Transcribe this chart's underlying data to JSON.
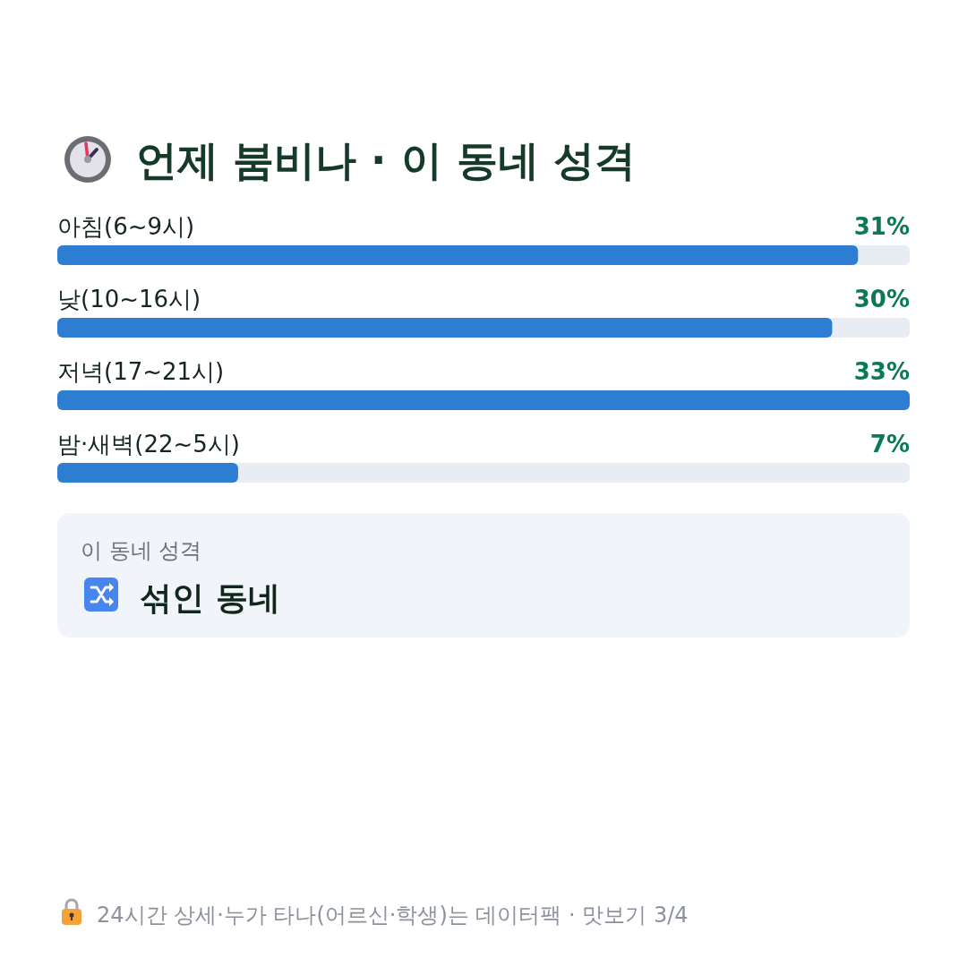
{
  "chart_data": {
    "type": "bar",
    "orientation": "horizontal",
    "title": "언제 붐비나 · 이 동네 성격",
    "categories": [
      "아침(6~9시)",
      "낮(10~16시)",
      "저녁(17~21시)",
      "밤·새벽(22~5시)"
    ],
    "values": [
      31,
      30,
      33,
      7
    ],
    "color": "#2d7dd2",
    "xlim": [
      0,
      33
    ],
    "value_labels": [
      "31%",
      "30%",
      "33%",
      "7%"
    ],
    "annotations": [
      "이 동네 성격",
      "섞인 동네",
      "24시간 상세·누가 타나(어르신·학생)는 데이터팩 · 맛보기 3/4"
    ]
  }
}
